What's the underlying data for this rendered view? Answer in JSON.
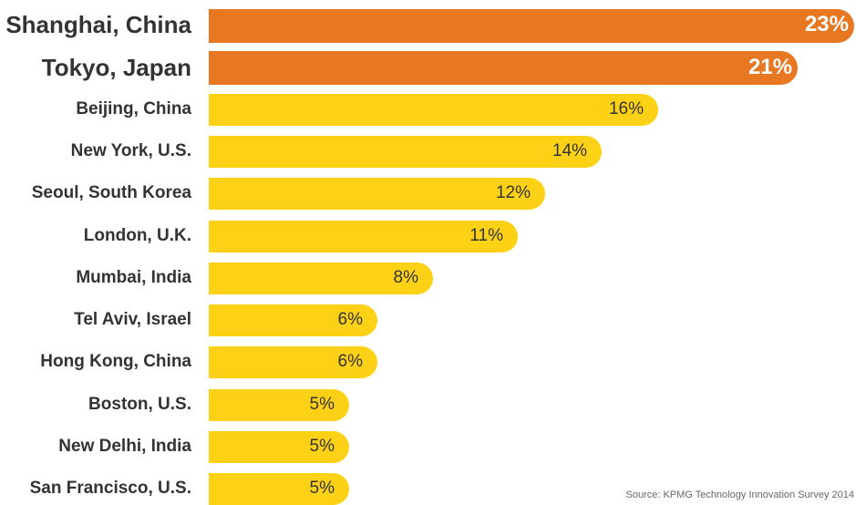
{
  "chart_data": {
    "type": "bar",
    "orientation": "horizontal",
    "categories": [
      "Shanghai, China",
      "Tokyo, Japan",
      "Beijing, China",
      "New York, U.S.",
      "Seoul, South Korea",
      "London, U.K.",
      "Mumbai, India",
      "Tel Aviv, Israel",
      "Hong Kong, China",
      "Boston, U.S.",
      "New Delhi, India",
      "San Francisco, U.S."
    ],
    "values": [
      23,
      21,
      16,
      14,
      12,
      11,
      8,
      6,
      6,
      5,
      5,
      5
    ],
    "value_labels": [
      "23%",
      "21%",
      "16%",
      "14%",
      "12%",
      "11%",
      "8%",
      "6%",
      "6%",
      "5%",
      "5%",
      "5%"
    ],
    "highlighted": [
      true,
      true,
      false,
      false,
      false,
      false,
      false,
      false,
      false,
      false,
      false,
      false
    ],
    "xlim": [
      0,
      23
    ],
    "grid": false,
    "colors": {
      "highlight": "#e87722",
      "normal": "#fcd116",
      "category_text": "#333333",
      "highlight_value_text": "#ffffff",
      "normal_value_text": "#333333"
    }
  },
  "source": "Source: KPMG Technology Innovation Survey 2014"
}
